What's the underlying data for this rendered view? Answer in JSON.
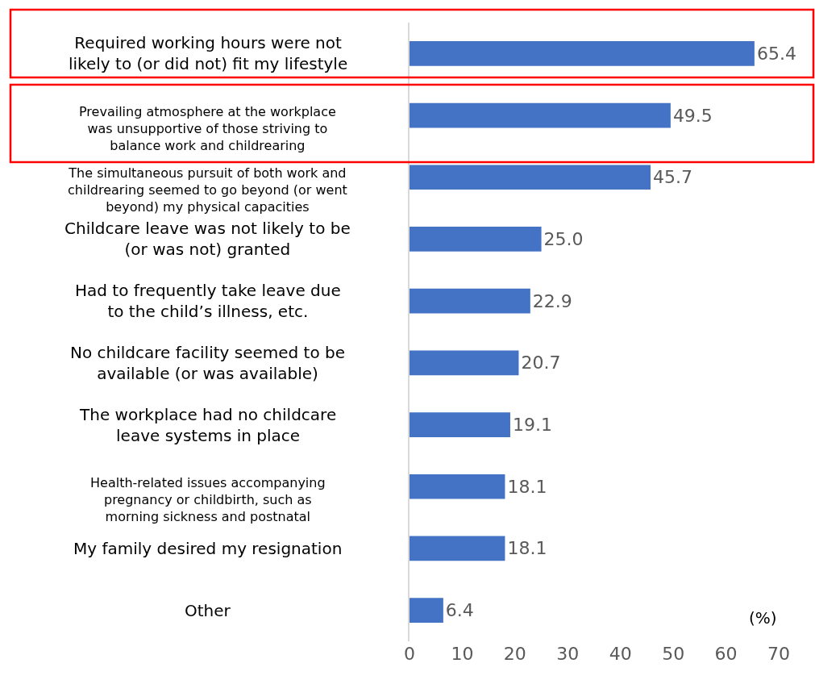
{
  "chart_data": {
    "type": "bar",
    "orientation": "horizontal",
    "categories": [
      "Required working hours were not\nlikely to (or did not) fit my lifestyle",
      "Prevailing atmosphere at the workplace\nwas unsupportive of those striving to\nbalance work and childrearing",
      "The simultaneous pursuit of both work and\nchildrearing seemed to go beyond (or went\nbeyond) my physical capacities",
      "Childcare leave was not likely to be\n(or was not) granted",
      "Had to frequently take leave due\nto the child’s illness, etc.",
      "No childcare facility seemed to be\navailable (or was available)",
      "The workplace had no childcare\nleave systems in place",
      "Health-related issues accompanying\npregnancy or childbirth, such as\nmorning sickness and postnatal",
      "My family desired my resignation",
      "Other"
    ],
    "values": [
      65.4,
      49.5,
      45.7,
      25.0,
      22.9,
      20.7,
      19.1,
      18.1,
      18.1,
      6.4
    ],
    "value_labels": [
      "65.4",
      "49.5",
      "45.7",
      "25.0",
      "22.9",
      "20.7",
      "19.1",
      "18.1",
      "18.1",
      "6.4"
    ],
    "color": "#4472c4",
    "xlim": [
      0,
      70
    ],
    "xticks": [
      0,
      10,
      20,
      30,
      40,
      50,
      60,
      70
    ],
    "grid": false,
    "annotations": [
      "(%)"
    ]
  }
}
